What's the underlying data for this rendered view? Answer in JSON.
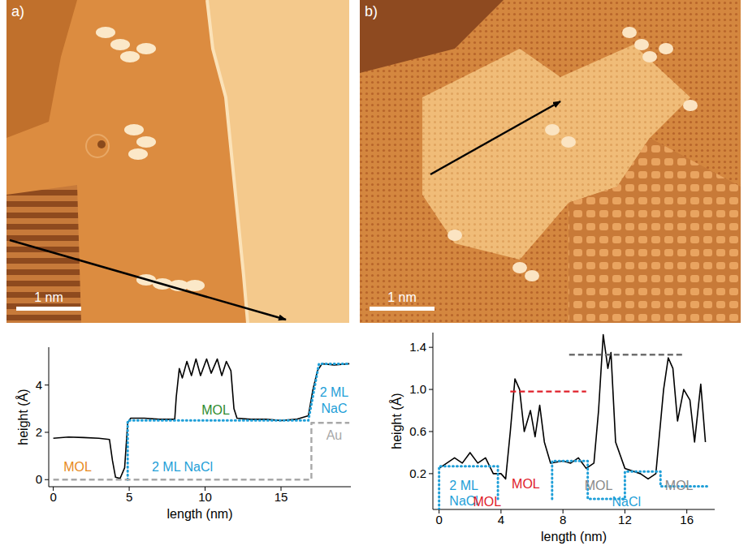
{
  "chart_data": [
    {
      "type": "line",
      "x_label": "length (nm)",
      "y_label": "height (Å)",
      "xlim": [
        -0.3,
        19.6
      ],
      "ylim": [
        -0.3,
        5.6
      ],
      "xticks": [
        0,
        5,
        10,
        15
      ],
      "yticks": [
        0,
        2,
        4
      ],
      "series": [
        {
          "color": "#000000",
          "line_style": "solid",
          "x": [
            0,
            1,
            2,
            3,
            3.7,
            3.9,
            4.1,
            4.4,
            4.7,
            4.9,
            5.1,
            6,
            7,
            8,
            8.1,
            8.3,
            8.5,
            8.8,
            9.1,
            9.4,
            9.7,
            10.1,
            10.4,
            10.8,
            11.1,
            11.4,
            11.7,
            11.9,
            12.1,
            13,
            14,
            15,
            16,
            16.8,
            17.1,
            17.4,
            17.7,
            18.5,
            19.5
          ],
          "values": [
            1.75,
            1.8,
            1.78,
            1.75,
            1.7,
            0.8,
            0.1,
            0.05,
            0.5,
            2.4,
            2.6,
            2.6,
            2.55,
            2.55,
            3.5,
            4.7,
            4.3,
            5.0,
            4.4,
            5.1,
            4.4,
            5.1,
            4.5,
            5.1,
            4.4,
            5.0,
            4.6,
            3.0,
            2.6,
            2.55,
            2.55,
            2.5,
            2.55,
            2.7,
            3.8,
            4.6,
            4.9,
            4.85,
            4.9
          ]
        },
        {
          "color": "#1f9fd8",
          "line_style": "dotted",
          "x": [
            4.9,
            4.9,
            16.8,
            17.5,
            19.5
          ],
          "values": [
            0,
            2.5,
            2.5,
            4.9,
            4.9
          ]
        },
        {
          "color": "#a8a8a8",
          "line_style": "dashed",
          "x": [
            0,
            17,
            17,
            19.5
          ],
          "values": [
            0,
            0,
            2.4,
            2.4
          ]
        }
      ],
      "annotations": [
        {
          "text": "MOL",
          "x": 1.6,
          "y": 0.5,
          "color": "#e8891c"
        },
        {
          "text": "2 ML NaCl",
          "x": 8.5,
          "y": 0.5,
          "color": "#1f9fd8"
        },
        {
          "text": "MOL",
          "x": 10.7,
          "y": 2.9,
          "color": "#2e8b2e"
        },
        {
          "text": "2 ML",
          "x": 18.5,
          "y": 3.65,
          "color": "#1f9fd8"
        },
        {
          "text": "NaC",
          "x": 18.5,
          "y": 2.95,
          "color": "#1f9fd8"
        },
        {
          "text": "Au",
          "x": 18.5,
          "y": 1.85,
          "color": "#a8a8a8"
        }
      ]
    },
    {
      "type": "line",
      "x_label": "length (nm)",
      "y_label": "height (Å)",
      "xlim": [
        -0.4,
        17.8
      ],
      "ylim": [
        -0.14,
        1.54
      ],
      "xticks": [
        0,
        4,
        8,
        12,
        16
      ],
      "yticks": [
        0.2,
        0.6,
        {
          "value": 1.0,
          "label": "1.0"
        },
        1.4
      ],
      "series": [
        {
          "color": "#000000",
          "line_style": "solid",
          "x": [
            0,
            0.5,
            1,
            1.5,
            2,
            2.5,
            3,
            3.5,
            4,
            4.3,
            4.6,
            4.9,
            5.2,
            5.5,
            5.9,
            6.2,
            6.5,
            6.8,
            7.2,
            8,
            8.5,
            9,
            9.5,
            10,
            10.3,
            10.6,
            10.9,
            11.1,
            11.4,
            12,
            13,
            13.5,
            14,
            14.5,
            14.8,
            15.1,
            15.4,
            15.8,
            16.2,
            16.5,
            16.9,
            17.2
          ],
          "values": [
            0.25,
            0.3,
            0.35,
            0.3,
            0.4,
            0.3,
            0.35,
            0.2,
            0.2,
            0.15,
            0.6,
            1.1,
            1.0,
            0.6,
            0.8,
            0.55,
            0.85,
            0.5,
            0.3,
            0.32,
            0.3,
            0.35,
            0.25,
            0.3,
            0.8,
            1.52,
            1.2,
            1.35,
            0.5,
            0.25,
            0.2,
            0.15,
            0.2,
            1.0,
            1.3,
            1.2,
            0.7,
            1.0,
            0.9,
            0.5,
            1.05,
            0.5
          ]
        },
        {
          "color": "#1f9fd8",
          "line_style": "dotted",
          "x": [
            0,
            0,
            3.8,
            3.8,
            5.5,
            7.3,
            7.3,
            9.6,
            9.6,
            12,
            12,
            14.3,
            14.3,
            17.3
          ],
          "values": [
            -0.14,
            0.27,
            0.27,
            -0.04,
            null,
            -0.04,
            0.32,
            0.32,
            -0.04,
            -0.04,
            0.22,
            0.22,
            0.08,
            0.08
          ]
        },
        {
          "color": "#e0202a",
          "line_style": "dashed",
          "x": [
            4.6,
            9.5
          ],
          "values": [
            0.98,
            0.98
          ]
        },
        {
          "color": "#6e6e6e",
          "line_style": "dashed",
          "x": [
            8.4,
            15.8
          ],
          "values": [
            1.33,
            1.33
          ]
        }
      ],
      "annotations": [
        {
          "text": "2 ML",
          "x": 1.6,
          "y": 0.08,
          "color": "#1f9fd8"
        },
        {
          "text": "NaCl",
          "x": 1.6,
          "y": -0.07,
          "color": "#1f9fd8"
        },
        {
          "text": "MOL",
          "x": 5.6,
          "y": 0.09,
          "color": "#e0202a"
        },
        {
          "text": "MOL",
          "x": 3.1,
          "y": -0.08,
          "color": "#e0202a"
        },
        {
          "text": "MOL",
          "x": 10.3,
          "y": 0.08,
          "color": "#8a8a8a"
        },
        {
          "text": "NaCl",
          "x": 12.1,
          "y": -0.08,
          "color": "#1f9fd8"
        },
        {
          "text": "MOL",
          "x": 15.5,
          "y": 0.08,
          "color": "#8a8a8a"
        }
      ]
    }
  ],
  "images": [
    {
      "label": "a)",
      "scale_bar": "1 nm"
    },
    {
      "label": "b)",
      "scale_bar": "1 nm"
    }
  ]
}
